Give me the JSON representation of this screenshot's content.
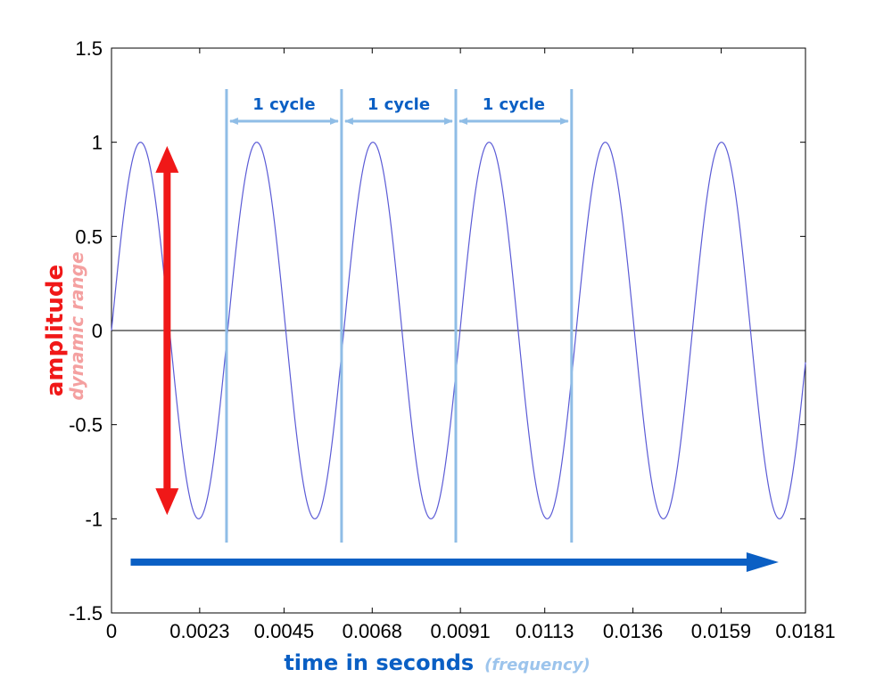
{
  "colors": {
    "wave": "#5b5bd6",
    "cycle_marker": "#8fbde6",
    "amplitude": "#f01818",
    "dynamic_range": "#f4a0a0",
    "time_arrow": "#0a5fc4",
    "frequency": "#9cc4ec",
    "axis": "#000000"
  },
  "chart_data": {
    "type": "line",
    "title": "",
    "xlabel": "time in seconds",
    "xlabel_note": "(frequency)",
    "ylabel": "amplitude",
    "ylabel_note": "dynamic range",
    "xlim": [
      0,
      0.0181
    ],
    "ylim": [
      -1.5,
      1.5
    ],
    "x_ticks": [
      0,
      0.0023,
      0.0045,
      0.0068,
      0.0091,
      0.0113,
      0.0136,
      0.0159,
      0.0181
    ],
    "x_tick_labels": [
      "0",
      "0.0023",
      "0.0045",
      "0.0068",
      "0.0091",
      "0.0113",
      "0.0136",
      "0.0159",
      "0.0181"
    ],
    "y_ticks": [
      -1.5,
      -1,
      -0.5,
      0,
      0.5,
      1,
      1.5
    ],
    "y_tick_labels": [
      "-1.5",
      "-1",
      "-0.5",
      "0",
      "0.5",
      "1",
      "1.5"
    ],
    "grid": false,
    "series": [
      {
        "function": "sine",
        "amplitude": 1,
        "frequency_hz": 330,
        "phase_offset_s": 0,
        "x_start": 0,
        "x_end": 0.0181
      }
    ],
    "zero_line": true,
    "cycle_markers_x": [
      0.003,
      0.006,
      0.00898,
      0.012
    ],
    "cycle_annotations": [
      {
        "label": "1 cycle",
        "from": 0.003,
        "to": 0.006
      },
      {
        "label": "1 cycle",
        "from": 0.006,
        "to": 0.00898
      },
      {
        "label": "1 cycle",
        "from": 0.00898,
        "to": 0.012
      }
    ],
    "amplitude_arrow": {
      "x": 0.00145,
      "from": -0.98,
      "to": 0.98
    },
    "time_arrow": {
      "from": 0.0005,
      "to": 0.0174,
      "y": -1.23
    }
  }
}
